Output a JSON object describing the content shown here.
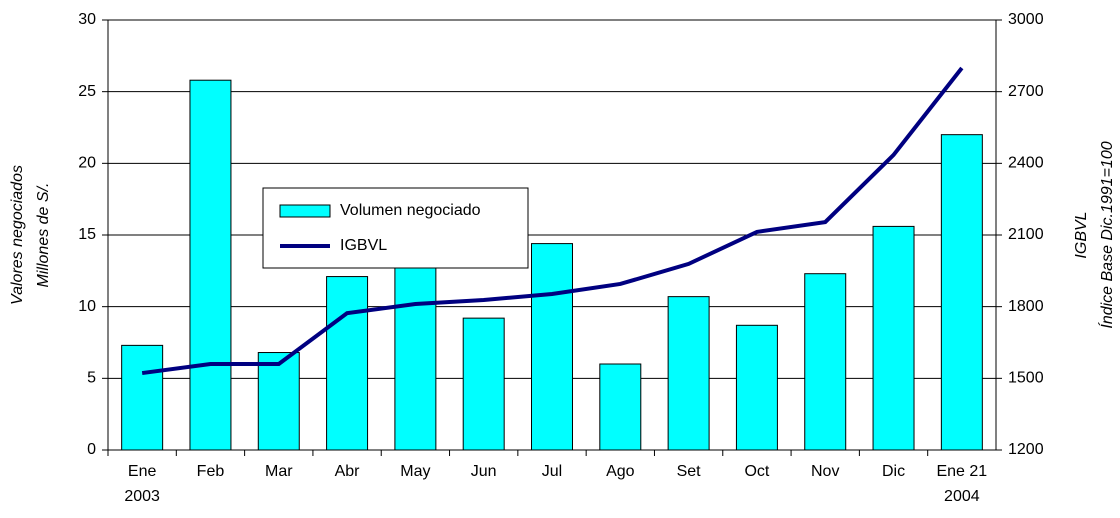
{
  "chart_data": {
    "type": "bar_line",
    "categories": [
      [
        "Ene",
        "2003"
      ],
      [
        "Feb"
      ],
      [
        "Mar"
      ],
      [
        "Abr"
      ],
      [
        "May"
      ],
      [
        "Jun"
      ],
      [
        "Jul"
      ],
      [
        "Ago"
      ],
      [
        "Set"
      ],
      [
        "Oct"
      ],
      [
        "Nov"
      ],
      [
        "Dic"
      ],
      [
        "Ene 21",
        "2004"
      ]
    ],
    "series": [
      {
        "name": "Volumen negociado",
        "type": "bar",
        "color": "#00ffff",
        "values": [
          7.3,
          25.8,
          6.8,
          12.1,
          14.1,
          9.2,
          14.4,
          6.0,
          10.7,
          8.7,
          12.3,
          15.6,
          22.0
        ]
      },
      {
        "name": "IGBVL",
        "type": "line",
        "axis": "y2",
        "color": "#000080",
        "values": [
          1522,
          1560,
          1560,
          1773,
          1811,
          1828,
          1853,
          1895,
          1979,
          2113,
          2154,
          2435,
          2799
        ]
      }
    ],
    "ylabel": [
      "Valores negociados",
      "Millones de S/."
    ],
    "y2label": [
      "IGBVL",
      "Índice Base Dic.1991=100"
    ],
    "ylim": [
      0,
      30
    ],
    "yticks": [
      0,
      5,
      10,
      15,
      20,
      25,
      30
    ],
    "y2lim": [
      1200,
      3000
    ],
    "y2ticks": [
      1200,
      1500,
      1800,
      2100,
      2400,
      2700,
      3000
    ],
    "grid": true
  }
}
